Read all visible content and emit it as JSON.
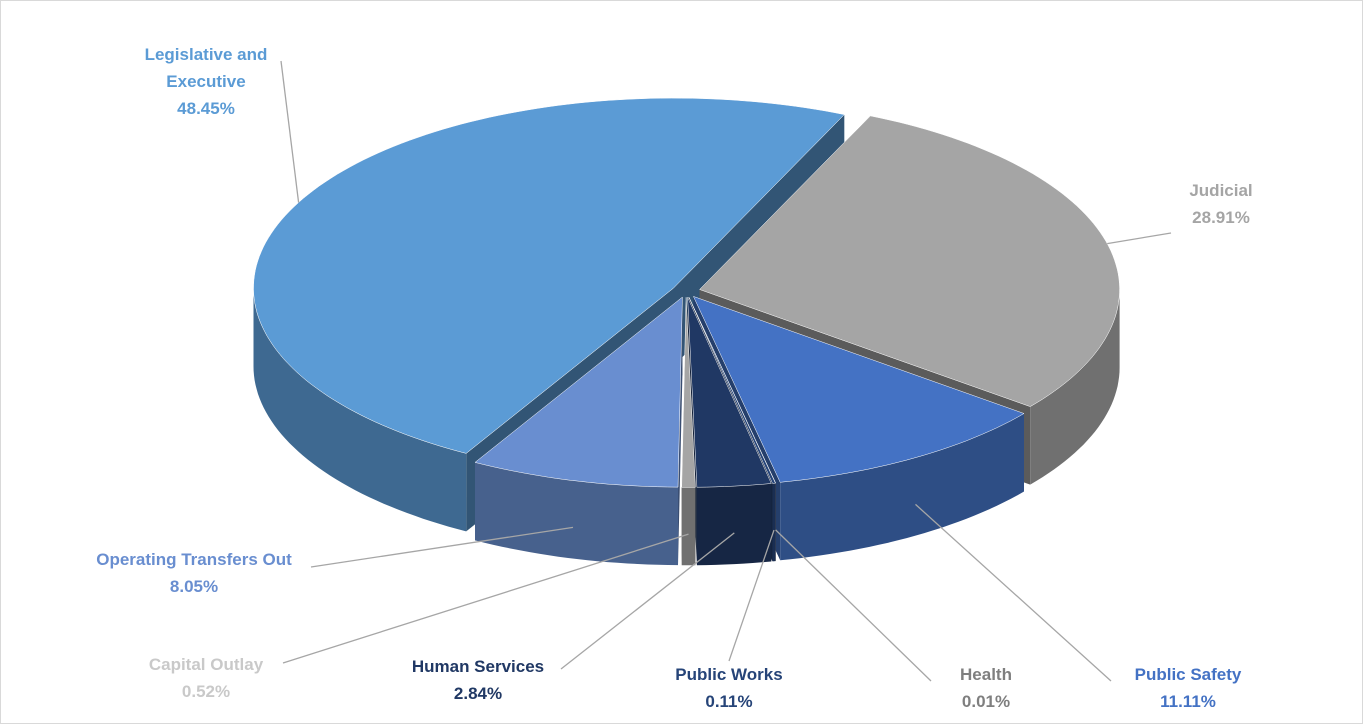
{
  "chart_data": {
    "type": "pie",
    "categories": [
      "Judicial",
      "Public Safety",
      "Health",
      "Public Works",
      "Human Services",
      "Capital Outlay",
      "Operating Transfers Out",
      "Legislative and Executive"
    ],
    "values": [
      28.91,
      11.11,
      0.01,
      0.11,
      2.84,
      0.52,
      8.05,
      48.45
    ],
    "value_labels": [
      "28.91%",
      "11.11%",
      "0.01%",
      "0.11%",
      "2.84%",
      "0.52%",
      "8.05%",
      "48.45%"
    ],
    "colors": [
      "#a5a5a5",
      "#4472c4",
      "#7f7f7f",
      "#264478",
      "#203864",
      "#a5a5a5",
      "#698ed0",
      "#5b9bd5"
    ],
    "label_colors": [
      "#a5a5a5",
      "#4472c4",
      "#7f7f7f",
      "#264478",
      "#203864",
      "#c9c9c9",
      "#698ed0",
      "#5b9bd5"
    ]
  }
}
